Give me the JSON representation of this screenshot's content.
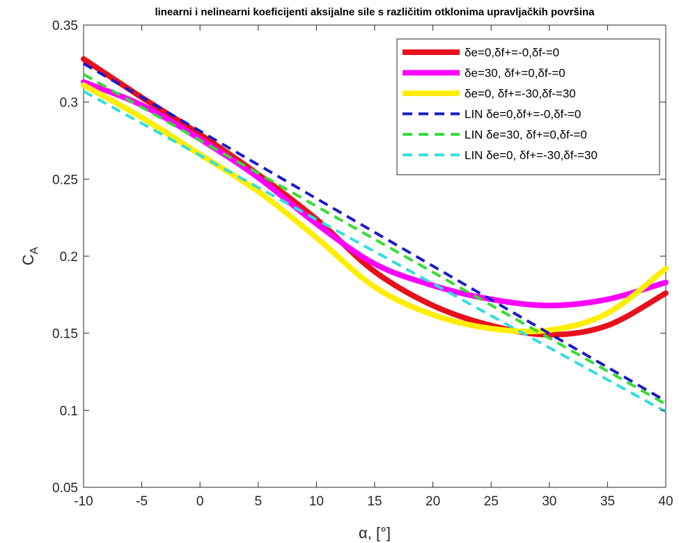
{
  "chart_data": {
    "type": "line",
    "title": "linearni i nelinearni koeficijenti aksijalne sile s različitim otklonima upravljačkih površina",
    "xlabel": "α, [°]",
    "ylabel_main": "C",
    "ylabel_sub": "A",
    "xlim": [
      -10,
      40
    ],
    "ylim": [
      0.05,
      0.35
    ],
    "xticks": [
      -10,
      -5,
      0,
      5,
      10,
      15,
      20,
      25,
      30,
      35,
      40
    ],
    "yticks": [
      0.05,
      0.1,
      0.15,
      0.2,
      0.25,
      0.3,
      0.35
    ],
    "xtick_labels": [
      "-10",
      "-5",
      "0",
      "5",
      "10",
      "15",
      "20",
      "25",
      "30",
      "35",
      "40"
    ],
    "ytick_labels": [
      "0.05",
      "0.1",
      "0.15",
      "0.2",
      "0.25",
      "0.3",
      "0.35"
    ],
    "grid": false,
    "legend_position": "top-right",
    "series": [
      {
        "name": "δe=0,δf+=-0,δf-=0",
        "color": "#e8101a",
        "style": "solid",
        "x": [
          -10,
          -5,
          0,
          5,
          10,
          15,
          20,
          25,
          30,
          35,
          40
        ],
        "y": [
          0.328,
          0.303,
          0.279,
          0.253,
          0.224,
          0.19,
          0.168,
          0.155,
          0.149,
          0.155,
          0.176
        ]
      },
      {
        "name": "δe=30, δf+=0,δf-=0",
        "color": "#ff00ff",
        "style": "solid",
        "x": [
          -10,
          -5,
          0,
          5,
          10,
          15,
          20,
          25,
          30,
          35,
          40
        ],
        "y": [
          0.313,
          0.298,
          0.276,
          0.251,
          0.221,
          0.195,
          0.181,
          0.172,
          0.168,
          0.172,
          0.183
        ]
      },
      {
        "name": "δe=0, δf+=-30,δf-=30",
        "color": "#ffee00",
        "style": "solid",
        "x": [
          -10,
          -5,
          0,
          5,
          10,
          15,
          20,
          25,
          30,
          35,
          40
        ],
        "y": [
          0.311,
          0.29,
          0.266,
          0.242,
          0.212,
          0.18,
          0.162,
          0.153,
          0.152,
          0.163,
          0.192
        ]
      },
      {
        "name": "LIN δe=0,δf+=-0,δf-=0",
        "color": "#1a1acc",
        "style": "dashed",
        "x": [
          -10,
          40
        ],
        "y": [
          0.325,
          0.106
        ]
      },
      {
        "name": "LIN δe=30, δf+=0,δf-=0",
        "color": "#33dd33",
        "style": "dashed",
        "x": [
          -10,
          40
        ],
        "y": [
          0.318,
          0.104
        ]
      },
      {
        "name": "LIN δe=0, δf+=-30,δf-=30",
        "color": "#33dddd",
        "style": "dashed",
        "x": [
          -10,
          40
        ],
        "y": [
          0.307,
          0.099
        ]
      }
    ]
  }
}
